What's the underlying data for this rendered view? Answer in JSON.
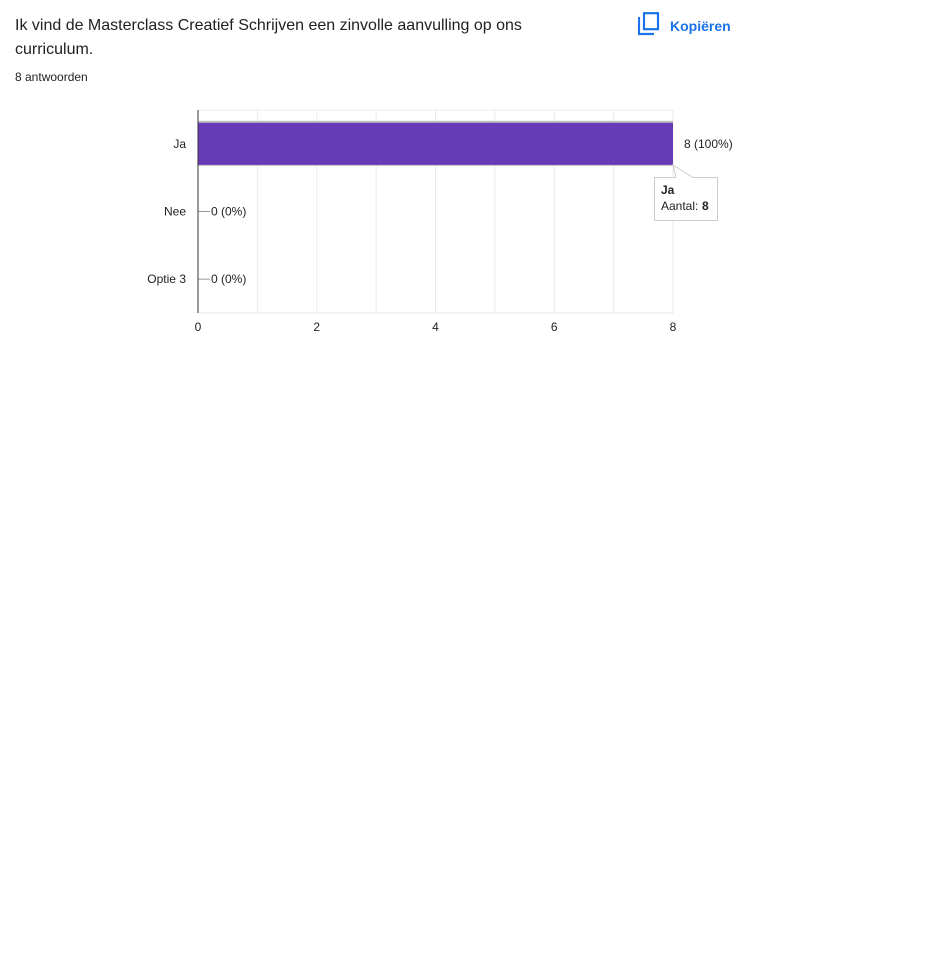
{
  "question": {
    "title": "Ik vind de Masterclass Creatief Schrijven een zinvolle aanvulling op ons curriculum.",
    "responses": "8 antwoorden",
    "copy_label": "Kopiëren",
    "copy_icon": "copy-icon"
  },
  "chart_data": {
    "type": "bar",
    "orientation": "horizontal",
    "categories": [
      "Ja",
      "Nee",
      "Optie 3"
    ],
    "values": [
      8,
      0,
      0
    ],
    "data_labels": [
      "8 (100%)",
      "0 (0%)",
      "0 (0%)"
    ],
    "xlim": [
      0,
      8
    ],
    "x_ticks": [
      "0",
      "2",
      "4",
      "6",
      "8"
    ],
    "grid": true,
    "bar_color": "#673ab7",
    "tooltip": {
      "category": "Ja",
      "label": "Aantal:",
      "value": "8"
    }
  }
}
